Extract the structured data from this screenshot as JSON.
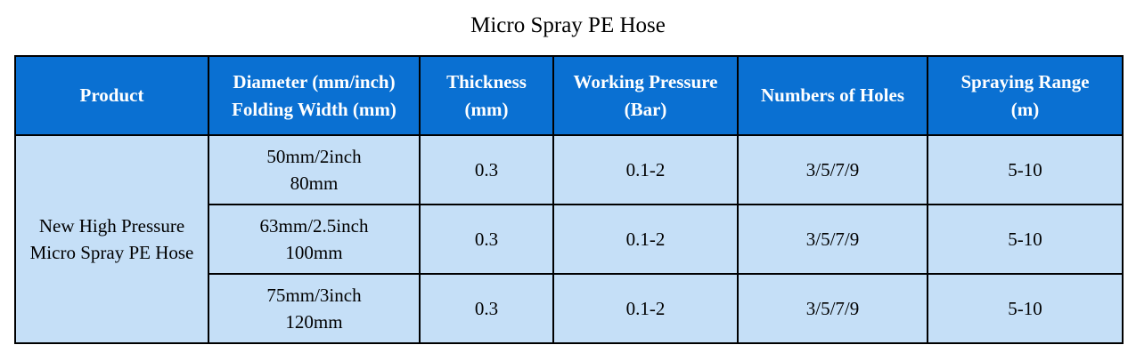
{
  "title": "Micro Spray PE Hose",
  "colors": {
    "header_bg": "#0a70d2",
    "header_text": "#ffffff",
    "body_bg": "#c5dff7",
    "body_text": "#000000",
    "border": "#000000",
    "page_bg": "#ffffff"
  },
  "table": {
    "headers": {
      "product": "Product",
      "diameter_folding": "Diameter (mm/inch)\nFolding Width (mm)",
      "thickness": "Thickness\n(mm)",
      "working_pressure": "Working Pressure\n(Bar)",
      "numbers_of_holes": "Numbers of Holes",
      "spraying_range": "Spraying Range\n(m)"
    },
    "product": "New High Pressure\nMicro Spray PE Hose",
    "rows": [
      {
        "diameter_folding": "50mm/2inch\n80mm",
        "thickness": "0.3",
        "working_pressure": "0.1-2",
        "numbers_of_holes": "3/5/7/9",
        "spraying_range": "5-10"
      },
      {
        "diameter_folding": "63mm/2.5inch\n100mm",
        "thickness": "0.3",
        "working_pressure": "0.1-2",
        "numbers_of_holes": "3/5/7/9",
        "spraying_range": "5-10"
      },
      {
        "diameter_folding": "75mm/3inch\n120mm",
        "thickness": "0.3",
        "working_pressure": "0.1-2",
        "numbers_of_holes": "3/5/7/9",
        "spraying_range": "5-10"
      }
    ]
  }
}
